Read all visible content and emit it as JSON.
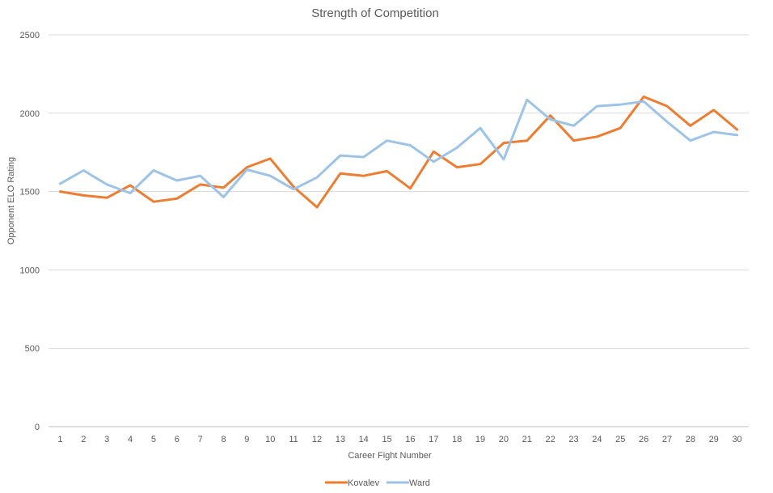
{
  "chart_data": {
    "type": "line",
    "title": "Strength of Competition",
    "xlabel": "Career Fight Number",
    "ylabel": "Opponent ELO Rating",
    "ylim": [
      0,
      2500
    ],
    "yticks": [
      0,
      500,
      1000,
      1500,
      2000,
      2500
    ],
    "grid": true,
    "legend_position": "bottom",
    "categories": [
      "1",
      "2",
      "3",
      "4",
      "5",
      "6",
      "7",
      "8",
      "9",
      "10",
      "11",
      "12",
      "13",
      "14",
      "15",
      "16",
      "17",
      "18",
      "19",
      "20",
      "21",
      "22",
      "23",
      "24",
      "25",
      "26",
      "27",
      "28",
      "29",
      "30"
    ],
    "series": [
      {
        "name": "Kovalev",
        "color": "#ED7D31",
        "values": [
          1500,
          1475,
          1460,
          1540,
          1435,
          1455,
          1545,
          1525,
          1655,
          1710,
          1530,
          1400,
          1615,
          1600,
          1630,
          1520,
          1755,
          1655,
          1675,
          1810,
          1825,
          1985,
          1825,
          1850,
          1905,
          2105,
          2045,
          1920,
          2020,
          1895
        ]
      },
      {
        "name": "Ward",
        "color": "#9DC3E6",
        "values": [
          1550,
          1635,
          1545,
          1490,
          1635,
          1570,
          1600,
          1465,
          1640,
          1600,
          1515,
          1590,
          1730,
          1720,
          1825,
          1795,
          1690,
          1780,
          1905,
          1705,
          2085,
          1960,
          1920,
          2045,
          2055,
          2075,
          1945,
          1825,
          1880,
          1860
        ]
      }
    ]
  }
}
